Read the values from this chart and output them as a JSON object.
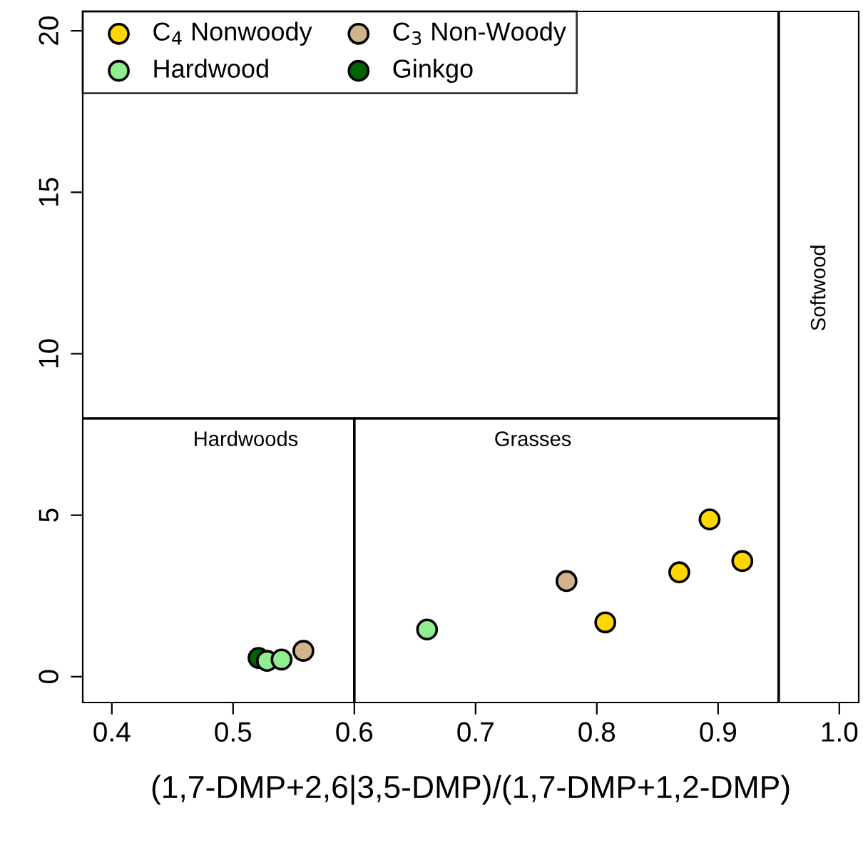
{
  "chart_data": {
    "type": "scatter",
    "xlabel": "(1,7-DMP+2,6|3,5-DMP)/(1,7-DMP+1,2-DMP)",
    "xlim": [
      0.376,
      1.016
    ],
    "ylim": [
      -0.8,
      20.6
    ],
    "xticks": [
      {
        "value": 0.4,
        "label": "0.4"
      },
      {
        "value": 0.5,
        "label": "0.5"
      },
      {
        "value": 0.6,
        "label": "0.6"
      },
      {
        "value": 0.7,
        "label": "0.7"
      },
      {
        "value": 0.8,
        "label": "0.8"
      },
      {
        "value": 0.9,
        "label": "0.9"
      },
      {
        "value": 1.0,
        "label": "1.0"
      }
    ],
    "yticks": [
      0,
      5,
      10,
      15,
      20
    ],
    "grid": false,
    "legend": "top left",
    "series": [
      {
        "name": "C$_{4}$ Nonwoody",
        "marker": "circle",
        "color": "#ffd700",
        "x": [
          0.893,
          0.868,
          0.92,
          0.807
        ],
        "values": [
          4.87,
          3.23,
          3.58,
          1.68
        ]
      },
      {
        "name": "C$_{3}$ Non-Woody",
        "marker": "circle",
        "color": "#d2b48c",
        "x": [
          0.775,
          0.558
        ],
        "values": [
          2.96,
          0.8
        ]
      },
      {
        "name": "Hardwood",
        "marker": "circle",
        "color": "#90ee90",
        "x": [
          0.66,
          0.528,
          0.54
        ],
        "values": [
          1.46,
          0.49,
          0.53
        ]
      },
      {
        "name": "Ginkgo",
        "marker": "circle",
        "color": "#006400",
        "x": [
          0.521
        ],
        "values": [
          0.58
        ]
      },
      {
        "type": "line",
        "marker": "none",
        "color": "#000000",
        "x": [
          0.6,
          0.6
        ],
        "values": [
          -0.8,
          8
        ]
      },
      {
        "type": "line",
        "marker": "none",
        "color": "#000000",
        "x": [
          0.376,
          0.95
        ],
        "values": [
          8,
          8
        ]
      },
      {
        "type": "line",
        "marker": "none",
        "color": "#000000",
        "x": [
          0.95,
          0.95
        ],
        "values": [
          -0.8,
          20.6
        ]
      }
    ],
    "annotations": [
      "Hardwoods",
      "Grasses",
      "Softwood"
    ]
  }
}
